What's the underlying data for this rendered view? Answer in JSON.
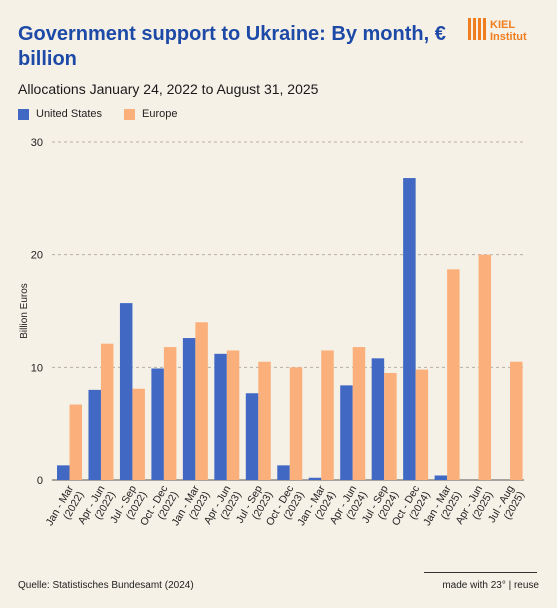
{
  "header": {
    "title": "Government support to Ukraine: By month, € billion",
    "subtitle": "Allocations January 24, 2022 to August 31, 2025",
    "logo_text": "KIEL Institut"
  },
  "colors": {
    "us": "#4169c4",
    "europe": "#fbb07c",
    "brand": "#1d4aa7",
    "logo": "#f07d1e"
  },
  "footer": {
    "source": "Quelle: Statistisches Bundesamt (2024)",
    "credit": "made with 23° | reuse"
  },
  "chart_data": {
    "type": "bar",
    "title": "Government support to Ukraine: By month, € billion",
    "subtitle": "Allocations January 24, 2022 to August 31, 2025",
    "xlabel": "",
    "ylabel": "Billion Euros",
    "ylim": [
      0,
      30
    ],
    "yticks": [
      0,
      10,
      20,
      30
    ],
    "grid": true,
    "legend_position": "top-left",
    "categories": [
      "Jan - Mar (2022)",
      "Apr - Jun (2022)",
      "Jul - Sep (2022)",
      "Oct - Dec (2022)",
      "Jan - Mar (2023)",
      "Apr - Jun (2023)",
      "Jul - Sep (2023)",
      "Oct - Dec (2023)",
      "Jan - Mar (2024)",
      "Apr - Jun (2024)",
      "Jul - Sep (2024)",
      "Oct - Dec (2024)",
      "Jan - Mar (2025)",
      "Apr - Jun (2025)",
      "Jul - Aug (2025)"
    ],
    "series": [
      {
        "name": "United States",
        "values": [
          1.3,
          8.0,
          15.7,
          9.9,
          12.6,
          11.2,
          7.7,
          1.3,
          0.2,
          8.4,
          10.8,
          26.8,
          0.4,
          0,
          0
        ]
      },
      {
        "name": "Europe",
        "values": [
          6.7,
          12.1,
          8.1,
          11.8,
          14.0,
          11.5,
          10.5,
          10.0,
          11.5,
          11.8,
          9.5,
          9.8,
          18.7,
          20.0,
          10.5
        ]
      }
    ]
  }
}
